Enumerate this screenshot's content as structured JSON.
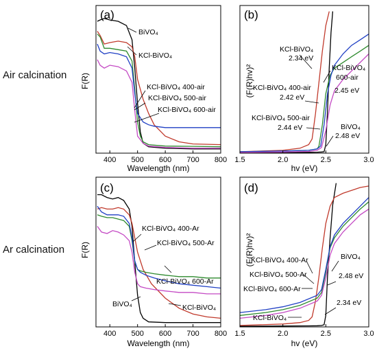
{
  "side_labels": {
    "air": "Air calcination",
    "ar": "Ar calcination"
  },
  "colors": {
    "BiVO4": "#000000",
    "KCl-BiVO4": "#c0392b",
    "KCl-BiVO4 400": "#2d8a2d",
    "KCl-BiVO4 500": "#1f3fc4",
    "KCl-BiVO4 600": "#c44ac4"
  },
  "chart_data": [
    {
      "panel": "(a)",
      "type": "line",
      "xlabel": "Wavelength (nm)",
      "ylabel": "F(R)",
      "xlim": [
        350,
        800
      ],
      "xticks": [
        400,
        500,
        600,
        700,
        800
      ],
      "ylim": [
        0,
        1
      ],
      "yticks_shown": false,
      "series": [
        {
          "name": "BiVO4",
          "color_key": "BiVO4",
          "x": [
            355,
            365,
            380,
            400,
            430,
            460,
            480,
            490,
            500,
            510,
            520,
            540,
            600,
            700,
            800
          ],
          "y": [
            0.93,
            0.94,
            0.95,
            0.94,
            0.93,
            0.9,
            0.8,
            0.6,
            0.35,
            0.15,
            0.07,
            0.045,
            0.035,
            0.03,
            0.03
          ]
        },
        {
          "name": "KCl-BiVO4",
          "color_key": "KCl-BiVO4",
          "x": [
            355,
            365,
            380,
            400,
            430,
            460,
            480,
            490,
            500,
            520,
            540,
            560,
            600,
            650,
            700,
            800
          ],
          "y": [
            0.86,
            0.83,
            0.77,
            0.78,
            0.79,
            0.78,
            0.75,
            0.68,
            0.52,
            0.38,
            0.28,
            0.2,
            0.12,
            0.08,
            0.065,
            0.06
          ]
        },
        {
          "name": "KCl-BiVO4 400-air",
          "color_key": "KCl-BiVO4 400",
          "x": [
            355,
            365,
            380,
            400,
            430,
            460,
            480,
            490,
            500,
            510,
            520,
            540,
            600,
            700,
            800
          ],
          "y": [
            0.84,
            0.82,
            0.74,
            0.74,
            0.73,
            0.72,
            0.65,
            0.45,
            0.22,
            0.12,
            0.08,
            0.06,
            0.05,
            0.048,
            0.045
          ]
        },
        {
          "name": "KCl-BiVO4 500-air",
          "color_key": "KCl-BiVO4 500",
          "x": [
            355,
            365,
            380,
            400,
            430,
            460,
            480,
            490,
            500,
            520,
            540,
            560,
            600,
            700,
            800
          ],
          "y": [
            0.77,
            0.72,
            0.7,
            0.71,
            0.7,
            0.68,
            0.6,
            0.42,
            0.28,
            0.22,
            0.2,
            0.19,
            0.18,
            0.18,
            0.18
          ]
        },
        {
          "name": "KCl-BiVO4 600-air",
          "color_key": "KCl-BiVO4 600",
          "x": [
            355,
            365,
            380,
            400,
            430,
            460,
            480,
            490,
            500,
            520,
            540,
            600,
            700,
            800
          ],
          "y": [
            0.66,
            0.62,
            0.6,
            0.62,
            0.61,
            0.58,
            0.5,
            0.3,
            0.12,
            0.07,
            0.05,
            0.04,
            0.035,
            0.035
          ]
        }
      ],
      "annotations": [
        {
          "text": "BiVO₄",
          "points_to": "BiVO4"
        },
        {
          "text": "KCl-BiVO₄",
          "points_to": "KCl-BiVO4"
        },
        {
          "text": "KCl-BiVO₄ 400-air",
          "points_to": "KCl-BiVO4 400-air"
        },
        {
          "text": "KCl-BiVO₄ 500-air",
          "points_to": "KCl-BiVO4 500-air"
        },
        {
          "text": "KCl-BiVO₄ 600-air",
          "points_to": "KCl-BiVO4 600-air"
        }
      ]
    },
    {
      "panel": "(b)",
      "type": "line",
      "xlabel": "hv (eV)",
      "ylabel": "(F(R)hv)²",
      "xlim": [
        1.5,
        3.0
      ],
      "xticks": [
        1.5,
        2.0,
        2.5,
        3.0
      ],
      "ylim": [
        0,
        1
      ],
      "yticks_shown": false,
      "series": [
        {
          "name": "BiVO4",
          "color_key": "BiVO4",
          "x": [
            1.5,
            2.0,
            2.3,
            2.4,
            2.45,
            2.48,
            2.5,
            2.52,
            2.54,
            2.56,
            2.58
          ],
          "y": [
            0.005,
            0.005,
            0.006,
            0.007,
            0.008,
            0.01,
            0.06,
            0.3,
            0.6,
            0.85,
            1.0
          ]
        },
        {
          "name": "KCl-BiVO4",
          "color_key": "KCl-BiVO4",
          "x": [
            1.5,
            2.0,
            2.2,
            2.3,
            2.34,
            2.38,
            2.42,
            2.46,
            2.5,
            2.54
          ],
          "y": [
            0.01,
            0.02,
            0.035,
            0.06,
            0.1,
            0.28,
            0.5,
            0.72,
            0.9,
            1.0
          ]
        },
        {
          "name": "KCl-BiVO4 400-air",
          "color_key": "KCl-BiVO4 400",
          "x": [
            1.5,
            2.0,
            2.3,
            2.4,
            2.42,
            2.46,
            2.5,
            2.55,
            2.6,
            2.7,
            2.8,
            2.9,
            3.0
          ],
          "y": [
            0.01,
            0.015,
            0.02,
            0.03,
            0.05,
            0.2,
            0.42,
            0.55,
            0.6,
            0.64,
            0.68,
            0.72,
            0.76
          ]
        },
        {
          "name": "KCl-BiVO4 500-air",
          "color_key": "KCl-BiVO4 500",
          "x": [
            1.5,
            2.0,
            2.3,
            2.4,
            2.44,
            2.48,
            2.52,
            2.56,
            2.6,
            2.7,
            2.8,
            2.9,
            3.0
          ],
          "y": [
            0.01,
            0.015,
            0.02,
            0.03,
            0.05,
            0.2,
            0.42,
            0.55,
            0.62,
            0.7,
            0.76,
            0.8,
            0.84
          ]
        },
        {
          "name": "KCl-BiVO4 600-air",
          "color_key": "KCl-BiVO4 600",
          "x": [
            1.5,
            2.0,
            2.3,
            2.4,
            2.45,
            2.5,
            2.55,
            2.6,
            2.7,
            2.8,
            2.9,
            3.0
          ],
          "y": [
            0.005,
            0.008,
            0.012,
            0.02,
            0.04,
            0.16,
            0.34,
            0.44,
            0.52,
            0.58,
            0.64,
            0.7
          ]
        }
      ],
      "annotations": [
        {
          "text": "KCl-BiVO₄",
          "sub": "2.34 eV"
        },
        {
          "text": "KCl-BiVO₄ 400-air",
          "sub": "2.42 eV"
        },
        {
          "text": "KCl-BiVO₄ 500-air",
          "sub": "2.44 eV"
        },
        {
          "text": "KCl-BiVO₄",
          "line2": "600-air",
          "sub": "2.45 eV"
        },
        {
          "text": "BiVO₄",
          "sub": "2.48 eV"
        }
      ]
    },
    {
      "panel": "(c)",
      "type": "line",
      "xlabel": "Wavelength (nm)",
      "ylabel": "F(R)",
      "xlim": [
        350,
        800
      ],
      "xticks": [
        400,
        500,
        600,
        700,
        800
      ],
      "ylim": [
        0,
        1
      ],
      "yticks_shown": false,
      "series": [
        {
          "name": "BiVO4",
          "color_key": "BiVO4",
          "x": [
            355,
            370,
            390,
            410,
            430,
            450,
            470,
            480,
            490,
            500,
            510,
            520,
            540,
            600,
            700,
            800
          ],
          "y": [
            0.92,
            0.92,
            0.9,
            0.89,
            0.9,
            0.88,
            0.82,
            0.7,
            0.45,
            0.22,
            0.1,
            0.06,
            0.035,
            0.03,
            0.03,
            0.03
          ]
        },
        {
          "name": "KCl-BiVO4",
          "color_key": "KCl-BiVO4",
          "x": [
            355,
            370,
            390,
            410,
            430,
            450,
            470,
            480,
            490,
            500,
            520,
            550,
            600,
            650,
            700,
            750,
            800
          ],
          "y": [
            0.82,
            0.83,
            0.82,
            0.82,
            0.83,
            0.82,
            0.78,
            0.72,
            0.62,
            0.52,
            0.4,
            0.3,
            0.2,
            0.13,
            0.09,
            0.07,
            0.06
          ]
        },
        {
          "name": "KCl-BiVO4 400-Ar",
          "color_key": "KCl-BiVO4 400",
          "x": [
            355,
            370,
            390,
            410,
            430,
            450,
            470,
            480,
            490,
            500,
            510,
            530,
            560,
            600,
            650,
            700,
            750,
            800
          ],
          "y": [
            0.78,
            0.77,
            0.76,
            0.76,
            0.75,
            0.74,
            0.7,
            0.6,
            0.45,
            0.4,
            0.39,
            0.38,
            0.37,
            0.36,
            0.35,
            0.35,
            0.34,
            0.34
          ]
        },
        {
          "name": "KCl-BiVO4 500-Ar",
          "color_key": "KCl-BiVO4 500",
          "x": [
            355,
            370,
            390,
            410,
            430,
            450,
            470,
            480,
            490,
            500,
            510,
            530,
            560,
            600,
            650,
            700,
            750,
            800
          ],
          "y": [
            0.84,
            0.8,
            0.78,
            0.78,
            0.78,
            0.77,
            0.72,
            0.62,
            0.46,
            0.4,
            0.38,
            0.36,
            0.34,
            0.32,
            0.3,
            0.29,
            0.28,
            0.27
          ]
        },
        {
          "name": "KCl-BiVO4 600-Ar",
          "color_key": "KCl-BiVO4 600",
          "x": [
            355,
            370,
            390,
            410,
            430,
            450,
            470,
            480,
            490,
            500,
            510,
            530,
            560,
            600,
            650,
            700,
            750,
            800
          ],
          "y": [
            0.7,
            0.66,
            0.65,
            0.67,
            0.66,
            0.64,
            0.6,
            0.52,
            0.38,
            0.3,
            0.28,
            0.27,
            0.26,
            0.25,
            0.24,
            0.24,
            0.23,
            0.23
          ]
        }
      ],
      "annotations": [
        {
          "text": "KCl-BiVO₄ 400-Ar",
          "points_to": "KCl-BiVO4 400-Ar"
        },
        {
          "text": "KCl-BiVO₄ 500-Ar",
          "points_to": "KCl-BiVO4 500-Ar"
        },
        {
          "text": "KCl-BiVO₄ 600-Ar",
          "points_to": "KCl-BiVO4 600-Ar"
        },
        {
          "text": "BiVO₄",
          "points_to": "BiVO4"
        },
        {
          "text": "KCl-BiVO₄",
          "points_to": "KCl-BiVO4"
        }
      ]
    },
    {
      "panel": "(d)",
      "type": "line",
      "xlabel": "hv (eV)",
      "ylabel": "(F(R)hv)²",
      "xlim": [
        1.5,
        3.0
      ],
      "xticks": [
        1.5,
        2.0,
        2.5,
        3.0
      ],
      "ylim": [
        0,
        1
      ],
      "yticks_shown": false,
      "series": [
        {
          "name": "BiVO4",
          "color_key": "BiVO4",
          "x": [
            1.5,
            2.0,
            2.3,
            2.4,
            2.45,
            2.48,
            2.5,
            2.52,
            2.55,
            2.58,
            2.62
          ],
          "y": [
            0.005,
            0.006,
            0.007,
            0.008,
            0.01,
            0.015,
            0.08,
            0.35,
            0.62,
            0.85,
            1.0
          ]
        },
        {
          "name": "KCl-BiVO4",
          "color_key": "KCl-BiVO4",
          "x": [
            1.5,
            2.0,
            2.2,
            2.3,
            2.34,
            2.38,
            2.42,
            2.46,
            2.5,
            2.55,
            2.6,
            2.7,
            2.8,
            2.9,
            3.0
          ],
          "y": [
            0.01,
            0.02,
            0.03,
            0.045,
            0.07,
            0.18,
            0.35,
            0.55,
            0.72,
            0.84,
            0.9,
            0.93,
            0.95,
            0.97,
            0.98
          ]
        },
        {
          "name": "KCl-BiVO4 400-Ar",
          "color_key": "KCl-BiVO4 400",
          "x": [
            1.5,
            1.8,
            2.0,
            2.2,
            2.4,
            2.45,
            2.5,
            2.55,
            2.6,
            2.7,
            2.8,
            2.9,
            3.0
          ],
          "y": [
            0.08,
            0.1,
            0.12,
            0.15,
            0.2,
            0.24,
            0.38,
            0.55,
            0.62,
            0.7,
            0.76,
            0.82,
            0.87
          ]
        },
        {
          "name": "KCl-BiVO4 500-Ar",
          "color_key": "KCl-BiVO4 500",
          "x": [
            1.5,
            1.8,
            2.0,
            2.2,
            2.4,
            2.45,
            2.5,
            2.55,
            2.6,
            2.7,
            2.8,
            2.9,
            3.0
          ],
          "y": [
            0.1,
            0.12,
            0.14,
            0.17,
            0.22,
            0.26,
            0.4,
            0.56,
            0.64,
            0.72,
            0.78,
            0.84,
            0.9
          ]
        },
        {
          "name": "KCl-BiVO4 600-Ar",
          "color_key": "KCl-BiVO4 600",
          "x": [
            1.5,
            1.8,
            2.0,
            2.2,
            2.4,
            2.45,
            2.5,
            2.55,
            2.6,
            2.7,
            2.8,
            2.9,
            3.0
          ],
          "y": [
            0.06,
            0.08,
            0.1,
            0.13,
            0.18,
            0.22,
            0.34,
            0.5,
            0.58,
            0.66,
            0.72,
            0.78,
            0.82
          ]
        }
      ],
      "annotations": [
        {
          "text": "KCl-BiVO₄ 400-Ar"
        },
        {
          "text": "KCl-BiVO₄ 500-Ar"
        },
        {
          "text": "KCl-BiVO₄ 600-Ar"
        },
        {
          "text": "BiVO₄",
          "sub": "2.48 eV"
        },
        {
          "text": "2.34 eV"
        },
        {
          "text": "KCl-BiVO₄"
        }
      ]
    }
  ]
}
